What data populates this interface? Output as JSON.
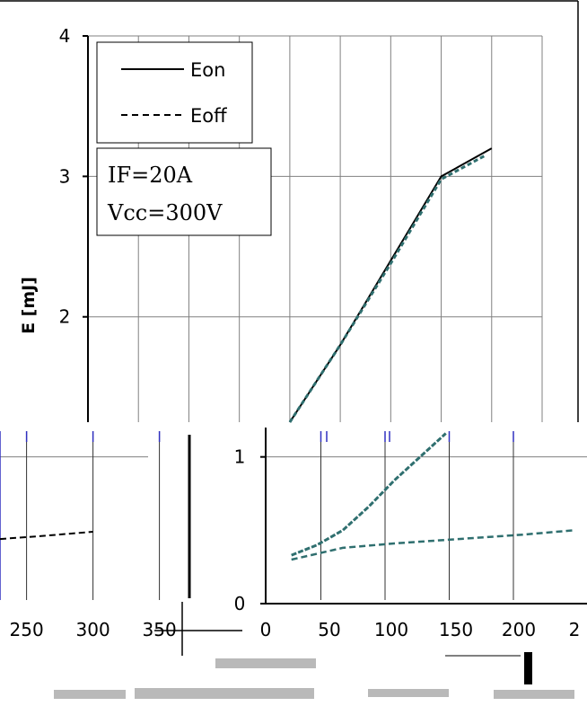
{
  "chart_data": [
    {
      "type": "line",
      "panel": "upper",
      "ylabel": "E [mJ]",
      "y_ticks": [
        "2",
        "3",
        "4"
      ],
      "ylim": [
        1.25,
        4
      ],
      "xlim": [
        -25,
        200
      ],
      "grid": true,
      "legend": {
        "placement": "top-left",
        "entries": [
          "Eon",
          "Eoff"
        ]
      },
      "conditions": [
        "IF=20A",
        "Vcc=300V"
      ],
      "series": [
        {
          "name": "Eon",
          "style": "solid",
          "x": [
            75,
            100,
            125,
            150,
            175
          ],
          "y": [
            1.25,
            1.8,
            2.4,
            3.0,
            3.2
          ]
        },
        {
          "name": "Eoff",
          "style": "dashed",
          "x": [
            75,
            100,
            125,
            150,
            172
          ],
          "y": [
            1.25,
            1.8,
            2.38,
            2.98,
            3.15
          ]
        }
      ]
    },
    {
      "type": "line",
      "panel": "lower-left",
      "x_ticks": [
        "250",
        "300",
        "350"
      ],
      "xlim": [
        230,
        355
      ],
      "ylim": [
        0,
        1.2
      ],
      "grid": true,
      "series": [
        {
          "name": "Eoff",
          "style": "dashed",
          "x": [
            230,
            260,
            300
          ],
          "y": [
            0.44,
            0.46,
            0.49
          ]
        }
      ]
    },
    {
      "type": "line",
      "panel": "lower-right",
      "x_ticks": [
        "0",
        "50",
        "100",
        "150",
        "200",
        "2"
      ],
      "y_ticks": [
        "0",
        "1"
      ],
      "xlim": [
        0,
        240
      ],
      "ylim": [
        0,
        1.2
      ],
      "grid": true,
      "series": [
        {
          "name": "Eon",
          "style": "solid",
          "x": [
            20,
            40,
            60,
            80,
            100,
            120,
            140
          ],
          "y": [
            0.33,
            0.4,
            0.5,
            0.66,
            0.84,
            1.0,
            1.16
          ]
        },
        {
          "name": "Eoff",
          "style": "dashed",
          "x": [
            20,
            60,
            100,
            150,
            200,
            240
          ],
          "y": [
            0.3,
            0.38,
            0.41,
            0.44,
            0.47,
            0.5
          ]
        }
      ]
    }
  ],
  "colors": {
    "grid": "#808080",
    "axis": "#000000",
    "minor_grid": "#3030c0",
    "line": "#000000",
    "eon_tint": "#2f6f6f"
  }
}
